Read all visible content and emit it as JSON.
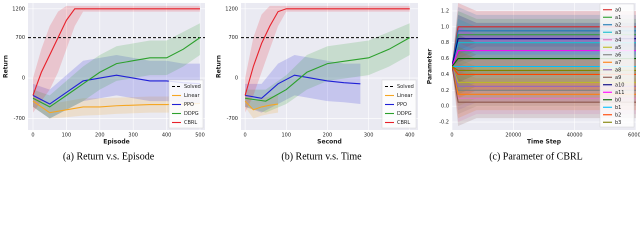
{
  "chart_data": [
    {
      "type": "line",
      "caption": "(a) Return v.s. Episode",
      "x_label": "Episode",
      "y_label": "Return",
      "xlim": [
        -15,
        515
      ],
      "xticks": [
        0,
        100,
        200,
        300,
        400,
        500
      ],
      "ylim": [
        -900,
        1300
      ],
      "yticks": [
        -700,
        0,
        700,
        1200
      ],
      "grid": true,
      "legend": "lower right",
      "series": [
        {
          "name": "Solved",
          "color": "#000000",
          "dashed": true,
          "x": [
            -15,
            515
          ],
          "values": [
            700,
            700
          ]
        },
        {
          "name": "Linear",
          "color": "#f5a623",
          "x": [
            0,
            50,
            100,
            150,
            200,
            250,
            300,
            350,
            400,
            450,
            500
          ],
          "values": [
            -400,
            -600,
            -550,
            -500,
            -500,
            -480,
            -470,
            -460,
            -460,
            -450,
            -440
          ],
          "lower": [
            -500,
            -700,
            -680,
            -650,
            -640,
            -620,
            -610,
            -600,
            -600,
            -590,
            -580
          ],
          "upper": [
            -300,
            -450,
            -400,
            -350,
            -350,
            -340,
            -330,
            -320,
            -320,
            -310,
            -300
          ]
        },
        {
          "name": "PPO",
          "color": "#1f1fd6",
          "x": [
            0,
            50,
            100,
            150,
            200,
            250,
            300,
            350,
            400,
            450,
            500
          ],
          "values": [
            -300,
            -450,
            -250,
            -50,
            0,
            50,
            0,
            -50,
            -50,
            -80,
            -100
          ],
          "lower": [
            -500,
            -700,
            -550,
            -400,
            -350,
            -300,
            -350,
            -400,
            -400,
            -420,
            -450
          ],
          "upper": [
            -100,
            -200,
            50,
            300,
            350,
            400,
            350,
            300,
            300,
            250,
            250
          ]
        },
        {
          "name": "DDPG",
          "color": "#2ca02c",
          "x": [
            0,
            50,
            100,
            150,
            200,
            250,
            300,
            350,
            400,
            450,
            500
          ],
          "values": [
            -350,
            -500,
            -300,
            -100,
            100,
            250,
            300,
            350,
            350,
            500,
            700
          ],
          "lower": [
            -500,
            -700,
            -550,
            -400,
            -200,
            -50,
            0,
            50,
            50,
            200,
            400
          ],
          "upper": [
            -200,
            -300,
            -50,
            200,
            400,
            550,
            600,
            650,
            650,
            800,
            950
          ]
        },
        {
          "name": "CBRL",
          "color": "#e8202a",
          "x": [
            0,
            25,
            50,
            75,
            100,
            125,
            150,
            500
          ],
          "values": [
            -300,
            100,
            400,
            700,
            1000,
            1200,
            1200,
            1200
          ],
          "lower": [
            -600,
            -400,
            -200,
            100,
            500,
            900,
            1150,
            1150
          ],
          "upper": [
            0,
            500,
            900,
            1150,
            1250,
            1250,
            1250,
            1250
          ]
        }
      ]
    },
    {
      "type": "line",
      "caption": "(b) Return v.s. Time",
      "x_label": "Second",
      "y_label": "Return",
      "xlim": [
        -10,
        420
      ],
      "xticks": [
        0,
        100,
        200,
        300,
        400
      ],
      "ylim": [
        -900,
        1300
      ],
      "yticks": [
        -700,
        0,
        700,
        1200
      ],
      "grid": true,
      "legend": "lower right",
      "series": [
        {
          "name": "Solved",
          "color": "#000000",
          "dashed": true,
          "x": [
            -10,
            420
          ],
          "values": [
            700,
            700
          ]
        },
        {
          "name": "Linear",
          "color": "#f5a623",
          "x": [
            0,
            20,
            40,
            60,
            80
          ],
          "values": [
            -400,
            -550,
            -500,
            -470,
            -450
          ],
          "lower": [
            -500,
            -700,
            -650,
            -620,
            -600
          ],
          "upper": [
            -300,
            -400,
            -350,
            -320,
            -300
          ]
        },
        {
          "name": "PPO",
          "color": "#1f1fd6",
          "x": [
            0,
            40,
            80,
            120,
            160,
            200,
            240,
            280
          ],
          "values": [
            -300,
            -350,
            -100,
            50,
            0,
            -50,
            -80,
            -100
          ],
          "lower": [
            -500,
            -600,
            -450,
            -300,
            -350,
            -400,
            -420,
            -450
          ],
          "upper": [
            -100,
            -100,
            250,
            400,
            350,
            300,
            250,
            250
          ]
        },
        {
          "name": "DDPG",
          "color": "#2ca02c",
          "x": [
            0,
            50,
            100,
            150,
            200,
            250,
            300,
            350,
            400
          ],
          "values": [
            -350,
            -400,
            -200,
            100,
            250,
            300,
            350,
            500,
            700
          ],
          "lower": [
            -500,
            -600,
            -450,
            -200,
            -50,
            0,
            50,
            200,
            400
          ],
          "upper": [
            -200,
            -200,
            50,
            400,
            550,
            600,
            650,
            800,
            950
          ]
        },
        {
          "name": "CBRL",
          "color": "#e8202a",
          "x": [
            0,
            20,
            40,
            60,
            80,
            100,
            400
          ],
          "values": [
            -300,
            200,
            600,
            900,
            1150,
            1200,
            1200
          ],
          "lower": [
            -600,
            -300,
            100,
            500,
            900,
            1150,
            1150
          ],
          "upper": [
            0,
            700,
            1100,
            1250,
            1250,
            1250,
            1250
          ]
        }
      ]
    },
    {
      "type": "line",
      "caption": "(c) Parameter of CBRL",
      "x_label": "Time Step",
      "y_label": "Parameter",
      "xlim": [
        0,
        60000
      ],
      "xticks": [
        0,
        20000,
        40000,
        60000
      ],
      "ylim": [
        -0.3,
        1.3
      ],
      "yticks": [
        -0.2,
        {
          "value": 0,
          "label": "0.0"
        },
        0.2,
        0.4,
        0.6,
        0.8,
        {
          "value": 1,
          "label": "1.0"
        },
        1.2
      ],
      "grid": true,
      "legend": "right",
      "x": [
        0,
        2000,
        8000,
        60000
      ],
      "series": [
        {
          "name": "a0",
          "color": "#d62728",
          "values": [
            0.5,
            1.0,
            1.0,
            1.0
          ],
          "lower": [
            0.5,
            0.7,
            0.8,
            0.8
          ],
          "upper": [
            0.5,
            1.3,
            1.2,
            1.2
          ]
        },
        {
          "name": "a1",
          "color": "#2ca02c",
          "values": [
            0.5,
            0.9,
            0.9,
            0.9
          ],
          "lower": [
            0.5,
            0.6,
            0.7,
            0.7
          ],
          "upper": [
            0.5,
            1.2,
            1.1,
            1.1
          ]
        },
        {
          "name": "a2",
          "color": "#1f77b4",
          "values": [
            0.5,
            0.95,
            0.95,
            0.95
          ],
          "lower": [
            0.5,
            0.65,
            0.75,
            0.75
          ],
          "upper": [
            0.5,
            1.25,
            1.15,
            1.15
          ]
        },
        {
          "name": "a3",
          "color": "#17becf",
          "values": [
            0.5,
            0.8,
            0.8,
            0.8
          ],
          "lower": [
            0.5,
            0.5,
            0.6,
            0.6
          ],
          "upper": [
            0.5,
            1.1,
            1.0,
            1.0
          ]
        },
        {
          "name": "a4",
          "color": "#e377c2",
          "values": [
            0.5,
            0.1,
            0.1,
            0.1
          ],
          "lower": [
            0.5,
            -0.2,
            -0.1,
            -0.1
          ],
          "upper": [
            0.5,
            0.4,
            0.3,
            0.3
          ]
        },
        {
          "name": "a5",
          "color": "#bcbd22",
          "values": [
            0.5,
            0.3,
            0.3,
            0.3
          ],
          "lower": [
            0.5,
            0.0,
            0.1,
            0.1
          ],
          "upper": [
            0.5,
            0.6,
            0.5,
            0.5
          ]
        },
        {
          "name": "a6",
          "color": "#7f7f7f",
          "values": [
            0.5,
            0.2,
            0.2,
            0.2
          ],
          "lower": [
            0.5,
            -0.1,
            0.0,
            0.0
          ],
          "upper": [
            0.5,
            0.5,
            0.4,
            0.4
          ]
        },
        {
          "name": "a7",
          "color": "#ff7f0e",
          "values": [
            0.5,
            0.15,
            0.15,
            0.15
          ],
          "lower": [
            0.5,
            -0.15,
            -0.05,
            -0.05
          ],
          "upper": [
            0.5,
            0.45,
            0.35,
            0.35
          ]
        },
        {
          "name": "a8",
          "color": "#9467bd",
          "values": [
            0.5,
            0.25,
            0.25,
            0.25
          ],
          "lower": [
            0.5,
            -0.05,
            0.05,
            0.05
          ],
          "upper": [
            0.5,
            0.55,
            0.45,
            0.45
          ]
        },
        {
          "name": "a9",
          "color": "#8c564b",
          "values": [
            0.5,
            0.05,
            0.05,
            0.05
          ],
          "lower": [
            0.5,
            -0.25,
            -0.15,
            -0.15
          ],
          "upper": [
            0.5,
            0.35,
            0.25,
            0.25
          ]
        },
        {
          "name": "a10",
          "color": "#000080",
          "values": [
            0.5,
            0.85,
            0.85,
            0.85
          ],
          "lower": [
            0.5,
            0.55,
            0.65,
            0.65
          ],
          "upper": [
            0.5,
            1.15,
            1.05,
            1.05
          ]
        },
        {
          "name": "a11",
          "color": "#ff00ff",
          "values": [
            0.5,
            0.7,
            0.7,
            0.7
          ],
          "lower": [
            0.5,
            0.4,
            0.5,
            0.5
          ],
          "upper": [
            0.5,
            1.0,
            0.9,
            0.9
          ]
        },
        {
          "name": "b0",
          "color": "#006400",
          "values": [
            0.5,
            0.6,
            0.6,
            0.6
          ],
          "lower": [
            0.5,
            0.3,
            0.4,
            0.4
          ],
          "upper": [
            0.5,
            0.9,
            0.8,
            0.8
          ]
        },
        {
          "name": "b1",
          "color": "#00bfff",
          "values": [
            0.5,
            0.5,
            0.5,
            0.5
          ],
          "lower": [
            0.5,
            0.2,
            0.3,
            0.3
          ],
          "upper": [
            0.5,
            0.8,
            0.7,
            0.7
          ]
        },
        {
          "name": "b2",
          "color": "#ff4500",
          "values": [
            0.5,
            0.4,
            0.4,
            0.4
          ],
          "lower": [
            0.5,
            0.1,
            0.2,
            0.2
          ],
          "upper": [
            0.5,
            0.7,
            0.6,
            0.6
          ]
        },
        {
          "name": "b3",
          "color": "#808000",
          "values": [
            0.5,
            0.45,
            0.45,
            0.45
          ],
          "lower": [
            0.5,
            0.15,
            0.25,
            0.25
          ],
          "upper": [
            0.5,
            0.75,
            0.65,
            0.65
          ]
        }
      ]
    }
  ]
}
